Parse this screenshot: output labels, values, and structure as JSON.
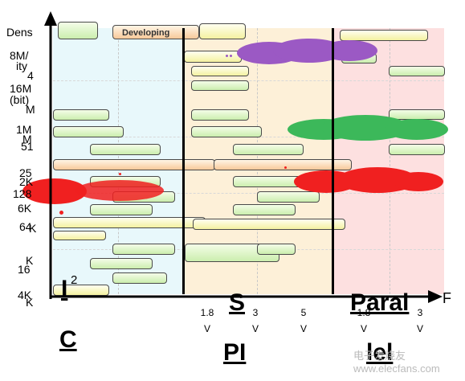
{
  "axes": {
    "y_label_parts": [
      "Dens",
      "ity",
      "(bit)"
    ],
    "x_label": "F",
    "y_ticks": [
      "8M/",
      "4",
      "16M",
      "M",
      "1M",
      "M",
      "51",
      "25",
      "2K",
      "128",
      "6K",
      "64",
      "K",
      "K",
      "16",
      "4K",
      "K"
    ]
  },
  "x_ticks": [
    {
      "v": "1.8",
      "u": "V"
    },
    {
      "v": "3",
      "u": "V"
    },
    {
      "v": "5",
      "u": "V"
    },
    {
      "v": "1.8",
      "u": "V"
    },
    {
      "v": "3",
      "u": "V"
    }
  ],
  "categories": {
    "i2c_top": "I",
    "i2c_sup": "2",
    "i2c_bottom": "C",
    "spi_top": "S",
    "spi_bottom": "PI",
    "parallel_top": "Paral",
    "parallel_bottom": "lel"
  },
  "legend": {
    "developing_label": "Developing"
  },
  "zone_colors": {
    "i2c": "#e8f8fb",
    "spi": "#fdf0d8",
    "parallel": "#fde0e0"
  },
  "blob_colors": {
    "purple": "#9b59c4",
    "green": "#3cb85a",
    "red": "#f02020"
  },
  "watermark": "电子发烧友  www.elecfans.com"
}
